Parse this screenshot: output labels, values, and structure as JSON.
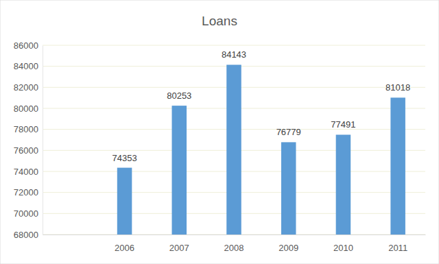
{
  "chart_data": {
    "type": "bar",
    "title": "Loans",
    "categories": [
      null,
      "2006",
      "2007",
      "2008",
      "2009",
      "2010",
      "2011"
    ],
    "values": [
      null,
      74353,
      80253,
      84143,
      76779,
      77491,
      81018
    ],
    "color": "#5b9bd5",
    "ylim": [
      68000,
      86000
    ],
    "yticks": [
      68000,
      70000,
      72000,
      74000,
      76000,
      78000,
      80000,
      82000,
      84000,
      86000
    ],
    "grid": true,
    "data_labels": true
  }
}
